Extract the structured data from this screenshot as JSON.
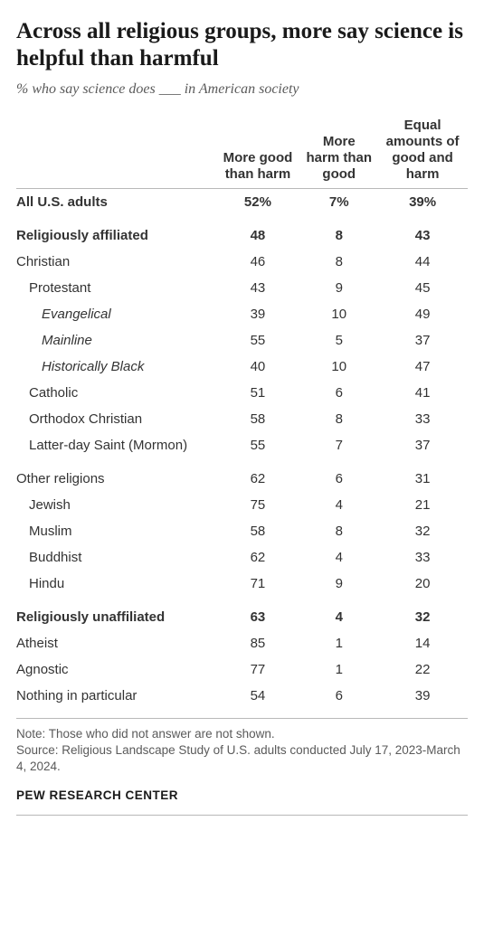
{
  "title": "Across all religious groups, more say science is helpful than harmful",
  "subtitle": "% who say science does ___ in American society",
  "columns": {
    "c1": "More good than harm",
    "c2": "More harm than good",
    "c3": "Equal amounts of good and harm"
  },
  "rows": [
    {
      "label": "All U.S. adults",
      "v1": "52%",
      "v2": "7%",
      "v3": "39%",
      "bold": true,
      "indent": 1,
      "gap": false,
      "italic": false
    },
    {
      "label": "Religiously affiliated",
      "v1": "48",
      "v2": "8",
      "v3": "43",
      "bold": true,
      "indent": 1,
      "gap": true,
      "italic": false
    },
    {
      "label": "Christian",
      "v1": "46",
      "v2": "8",
      "v3": "44",
      "bold": false,
      "indent": 1,
      "gap": false,
      "italic": false
    },
    {
      "label": "Protestant",
      "v1": "43",
      "v2": "9",
      "v3": "45",
      "bold": false,
      "indent": 2,
      "gap": false,
      "italic": false
    },
    {
      "label": "Evangelical",
      "v1": "39",
      "v2": "10",
      "v3": "49",
      "bold": false,
      "indent": 3,
      "gap": false,
      "italic": true
    },
    {
      "label": "Mainline",
      "v1": "55",
      "v2": "5",
      "v3": "37",
      "bold": false,
      "indent": 3,
      "gap": false,
      "italic": true
    },
    {
      "label": "Historically Black",
      "v1": "40",
      "v2": "10",
      "v3": "47",
      "bold": false,
      "indent": 3,
      "gap": false,
      "italic": true
    },
    {
      "label": "Catholic",
      "v1": "51",
      "v2": "6",
      "v3": "41",
      "bold": false,
      "indent": 2,
      "gap": false,
      "italic": false
    },
    {
      "label": "Orthodox Christian",
      "v1": "58",
      "v2": "8",
      "v3": "33",
      "bold": false,
      "indent": 2,
      "gap": false,
      "italic": false
    },
    {
      "label": "Latter-day Saint (Mormon)",
      "v1": "55",
      "v2": "7",
      "v3": "37",
      "bold": false,
      "indent": 2,
      "gap": false,
      "italic": false
    },
    {
      "label": "Other religions",
      "v1": "62",
      "v2": "6",
      "v3": "31",
      "bold": false,
      "indent": 1,
      "gap": true,
      "italic": false
    },
    {
      "label": "Jewish",
      "v1": "75",
      "v2": "4",
      "v3": "21",
      "bold": false,
      "indent": 2,
      "gap": false,
      "italic": false
    },
    {
      "label": "Muslim",
      "v1": "58",
      "v2": "8",
      "v3": "32",
      "bold": false,
      "indent": 2,
      "gap": false,
      "italic": false
    },
    {
      "label": "Buddhist",
      "v1": "62",
      "v2": "4",
      "v3": "33",
      "bold": false,
      "indent": 2,
      "gap": false,
      "italic": false
    },
    {
      "label": "Hindu",
      "v1": "71",
      "v2": "9",
      "v3": "20",
      "bold": false,
      "indent": 2,
      "gap": false,
      "italic": false
    },
    {
      "label": "Religiously unaffiliated",
      "v1": "63",
      "v2": "4",
      "v3": "32",
      "bold": true,
      "indent": 1,
      "gap": true,
      "italic": false
    },
    {
      "label": "Atheist",
      "v1": "85",
      "v2": "1",
      "v3": "14",
      "bold": false,
      "indent": 1,
      "gap": false,
      "italic": false
    },
    {
      "label": "Agnostic",
      "v1": "77",
      "v2": "1",
      "v3": "22",
      "bold": false,
      "indent": 1,
      "gap": false,
      "italic": false
    },
    {
      "label": "Nothing in particular",
      "v1": "54",
      "v2": "6",
      "v3": "39",
      "bold": false,
      "indent": 1,
      "gap": false,
      "italic": false
    }
  ],
  "note_line1": "Note: Those who did not answer are not shown.",
  "note_line2": "Source: Religious Landscape Study of U.S. adults conducted July 17, 2023-March 4, 2024.",
  "source_name": "PEW RESEARCH CENTER",
  "style": {
    "background": "#ffffff",
    "text_color": "#333333",
    "title_color": "#1a1a1a",
    "subtitle_color": "#5a5a5a",
    "rule_color": "#b8b8b8",
    "title_fontsize": 25,
    "subtitle_fontsize": 16,
    "body_fontsize": 15,
    "note_fontsize": 13.5
  }
}
